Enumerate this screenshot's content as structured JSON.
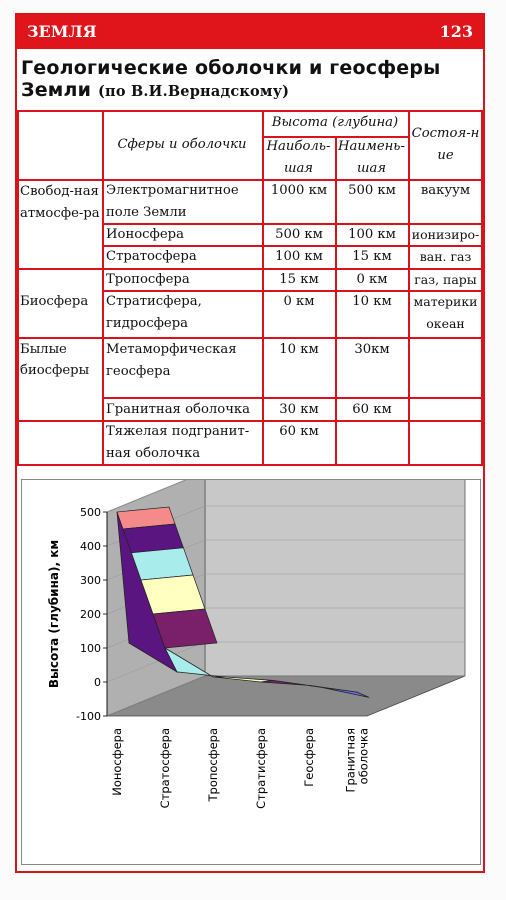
{
  "header": {
    "section": "ЗЕМЛЯ",
    "page": "123"
  },
  "title": {
    "main": "Геологические оболочки и геосферы Земли",
    "by": "(по В.И.Вернадскому)"
  },
  "table": {
    "col_spheres": "Сферы и оболочки",
    "col_height": "Высота (глубина)",
    "col_max": "Наиболь-шая",
    "col_min": "Наимень-шая",
    "col_state": "Состоя-ние",
    "groups": [
      "Свобод-ная атмосфе-ра",
      "Биосфера",
      "Былые биосферы"
    ],
    "rows": [
      {
        "name": "Электромагнитное поле Земли",
        "max": "1000 км",
        "min": "500 км",
        "state": "вакуум"
      },
      {
        "name": "Ионосфера",
        "max": "500 км",
        "min": "100 км",
        "state": "ионизиро-"
      },
      {
        "name": "Стратосфера",
        "max": "100 км",
        "min": "15 км",
        "state": "ван. газ"
      },
      {
        "name": "Тропосфера",
        "max": "15 км",
        "min": "0 км",
        "state": "газ, пары"
      },
      {
        "name": "Стратисфера, гидросфера",
        "max": "0 км",
        "min": "10 км",
        "state": "материки океан"
      },
      {
        "name": "Метаморфическая геосфера",
        "max": "10 км",
        "min": "30км",
        "state": ""
      },
      {
        "name": "Гранитная оболочка",
        "max": "30 км",
        "min": "60 км",
        "state": ""
      },
      {
        "name": "Тяжелая подгранит-ная оболочка",
        "max": "60 км",
        "min": "",
        "state": ""
      }
    ]
  },
  "chart_data": {
    "type": "area",
    "ylabel": "Высота (глубина), км",
    "ylim": [
      -100,
      500
    ],
    "yticks": [
      "500",
      "400",
      "300",
      "200",
      "100",
      "0",
      "-100"
    ],
    "categories": [
      "Ионосфера",
      "Стратосфера",
      "Тропосфера",
      "Стратисфера",
      "Геосфера",
      "Гранитная оболочка"
    ],
    "series": [
      {
        "values": [
          500,
          100,
          15,
          0,
          -10,
          -30
        ]
      },
      {
        "values": [
          100,
          15,
          0,
          -10,
          -30,
          -60
        ]
      }
    ],
    "band_colors": [
      "#f48a8a",
      "#5a1580",
      "#a8ecec",
      "#ffffc0",
      "#7a1f6a",
      "#6e6ef5"
    ]
  }
}
